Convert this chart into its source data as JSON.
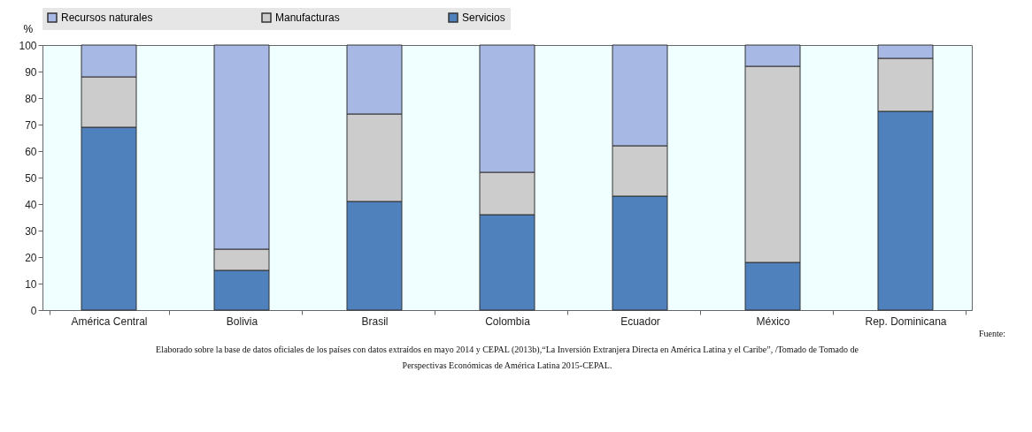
{
  "chart_data": {
    "type": "bar",
    "stacked": true,
    "ylabel": "%",
    "categories": [
      "América Central",
      "Bolivia",
      "Brasil",
      "Colombia",
      "Ecuador",
      "México",
      "Rep. Dominicana"
    ],
    "series": [
      {
        "name": "Servicios",
        "color": "#4f81bd",
        "values": [
          69,
          15,
          41,
          36,
          43,
          18,
          75
        ]
      },
      {
        "name": "Manufacturas",
        "color": "#cccccc",
        "values": [
          19,
          8,
          33,
          16,
          19,
          74,
          20
        ]
      },
      {
        "name": "Recursos naturales",
        "color": "#a6b8e3",
        "values": [
          12,
          77,
          26,
          48,
          38,
          8,
          5
        ]
      }
    ],
    "ylim": [
      0,
      100
    ],
    "yticks": [
      0,
      10,
      20,
      30,
      40,
      50,
      60,
      70,
      80,
      90,
      100
    ],
    "grid": false,
    "legend": "top",
    "annotations": [
      "Fuente:",
      "Elaborado sobre la base de datos oficiales de los países con datos extraídos en mayo 2014 y CEPAL (2013b),“La Inversión Extranjera Directa en América Latina y el Caribe”, /Tomado de Tomado de Perspectivas Económicas de América Latina 2015-CEPAL."
    ]
  }
}
